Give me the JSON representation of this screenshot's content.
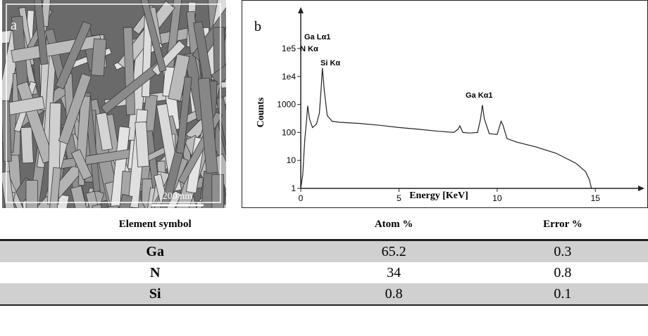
{
  "panel_a": {
    "label": "a",
    "scale_bar": "200 nm"
  },
  "panel_b": {
    "label": "b",
    "chart_data": {
      "type": "line",
      "log_y": true,
      "y_label": "Counts",
      "x_label": "Energy [KeV]",
      "annotations": [
        "Ga Lα1",
        "N Kα",
        "Si Kα",
        "Ga Kα1"
      ],
      "xlim": [
        0,
        17.5
      ],
      "xticks": [
        0,
        5,
        10,
        15
      ],
      "ylim": [
        1,
        400000
      ],
      "yticks": [
        1,
        10,
        100,
        1000,
        {
          "value": 10000,
          "label": "1e4"
        },
        {
          "value": 100000,
          "label": "1e5"
        }
      ],
      "color": "#222222",
      "x": [
        0.0,
        0.1,
        0.2,
        0.3,
        0.35,
        0.45,
        0.6,
        0.8,
        0.95,
        1.05,
        1.1,
        1.2,
        1.35,
        1.6,
        2,
        3,
        4,
        5,
        6,
        7,
        7.8,
        8.0,
        8.1,
        8.25,
        8.6,
        9.0,
        9.15,
        9.25,
        9.35,
        9.6,
        10.0,
        10.2,
        10.3,
        10.5,
        11,
        12,
        13,
        14,
        14.5,
        14.7,
        14.8
      ],
      "values": [
        1,
        3,
        50,
        300,
        900,
        300,
        150,
        200,
        500,
        5000,
        20000,
        3000,
        400,
        250,
        230,
        210,
        180,
        150,
        130,
        110,
        100,
        130,
        170,
        100,
        95,
        100,
        300,
        950,
        300,
        90,
        85,
        250,
        180,
        60,
        45,
        30,
        18,
        8,
        4,
        2,
        1
      ]
    }
  },
  "table": {
    "header": [
      "Element symbol",
      "Atom %",
      "Error %"
    ],
    "rows": [
      [
        "Ga",
        65.2,
        0.3
      ],
      [
        "N",
        34,
        0.8
      ],
      [
        "Si",
        0.8,
        0.1
      ]
    ]
  }
}
